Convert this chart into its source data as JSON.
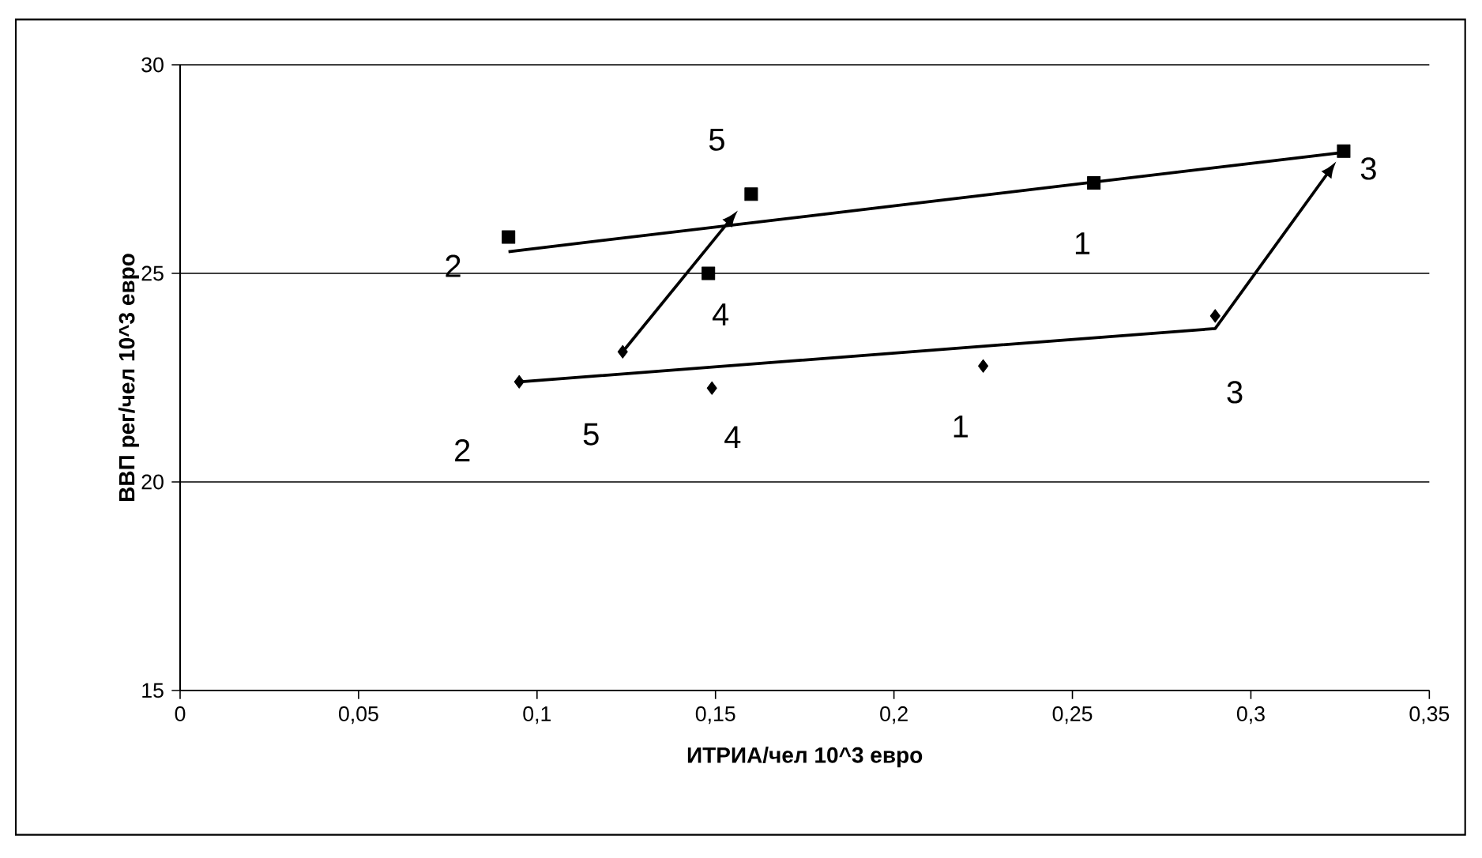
{
  "chart_data": {
    "type": "scatter",
    "xlabel": "ИТРИА/чел 10^3 евро",
    "ylabel": "ВВП рег/чел 10^3 евро",
    "xlim": [
      0,
      0.35
    ],
    "ylim": [
      15,
      30
    ],
    "xticks": [
      0,
      {
        "value": 0.05,
        "label": "0,05"
      },
      {
        "value": 0.1,
        "label": "0,1"
      },
      {
        "value": 0.15,
        "label": "0,15"
      },
      {
        "value": 0.2,
        "label": "0,2"
      },
      {
        "value": 0.25,
        "label": "0,25"
      },
      {
        "value": 0.3,
        "label": "0,3"
      },
      {
        "value": 0.35,
        "label": "0,35"
      }
    ],
    "yticks": [
      15,
      20,
      25,
      30
    ],
    "grid": "y",
    "series": [
      {
        "marker": "square",
        "color": "#000000",
        "x": [
          0.256,
          0.092,
          0.326,
          0.148,
          0.16
        ],
        "values": [
          27.17,
          25.87,
          27.93,
          25.0,
          26.9
        ]
      },
      {
        "marker": "diamond",
        "color": "#000000",
        "x": [
          0.225,
          0.095,
          0.29,
          0.149,
          0.124
        ],
        "values": [
          22.78,
          22.4,
          23.98,
          22.25,
          23.12
        ]
      },
      {
        "type": "line",
        "marker": "none",
        "color": "#000000",
        "x": [
          0.092,
          0.326
        ],
        "values": [
          25.52,
          27.9
        ]
      }
    ],
    "annotations": [
      {
        "text": "1",
        "x": 0.256,
        "y": 27.17
      },
      {
        "text": "2",
        "x": 0.092,
        "y": 25.87
      },
      {
        "text": "3",
        "x": 0.326,
        "y": 27.93
      },
      {
        "text": "4",
        "x": 0.148,
        "y": 25.0
      },
      {
        "text": "5",
        "x": 0.16,
        "y": 26.9
      },
      {
        "text": "1",
        "x": 0.225,
        "y": 22.78
      },
      {
        "text": "2",
        "x": 0.095,
        "y": 22.4
      },
      {
        "text": "3",
        "x": 0.29,
        "y": 23.98
      },
      {
        "text": "4",
        "x": 0.149,
        "y": 22.25
      },
      {
        "text": "5",
        "x": 0.124,
        "y": 23.12
      }
    ]
  }
}
